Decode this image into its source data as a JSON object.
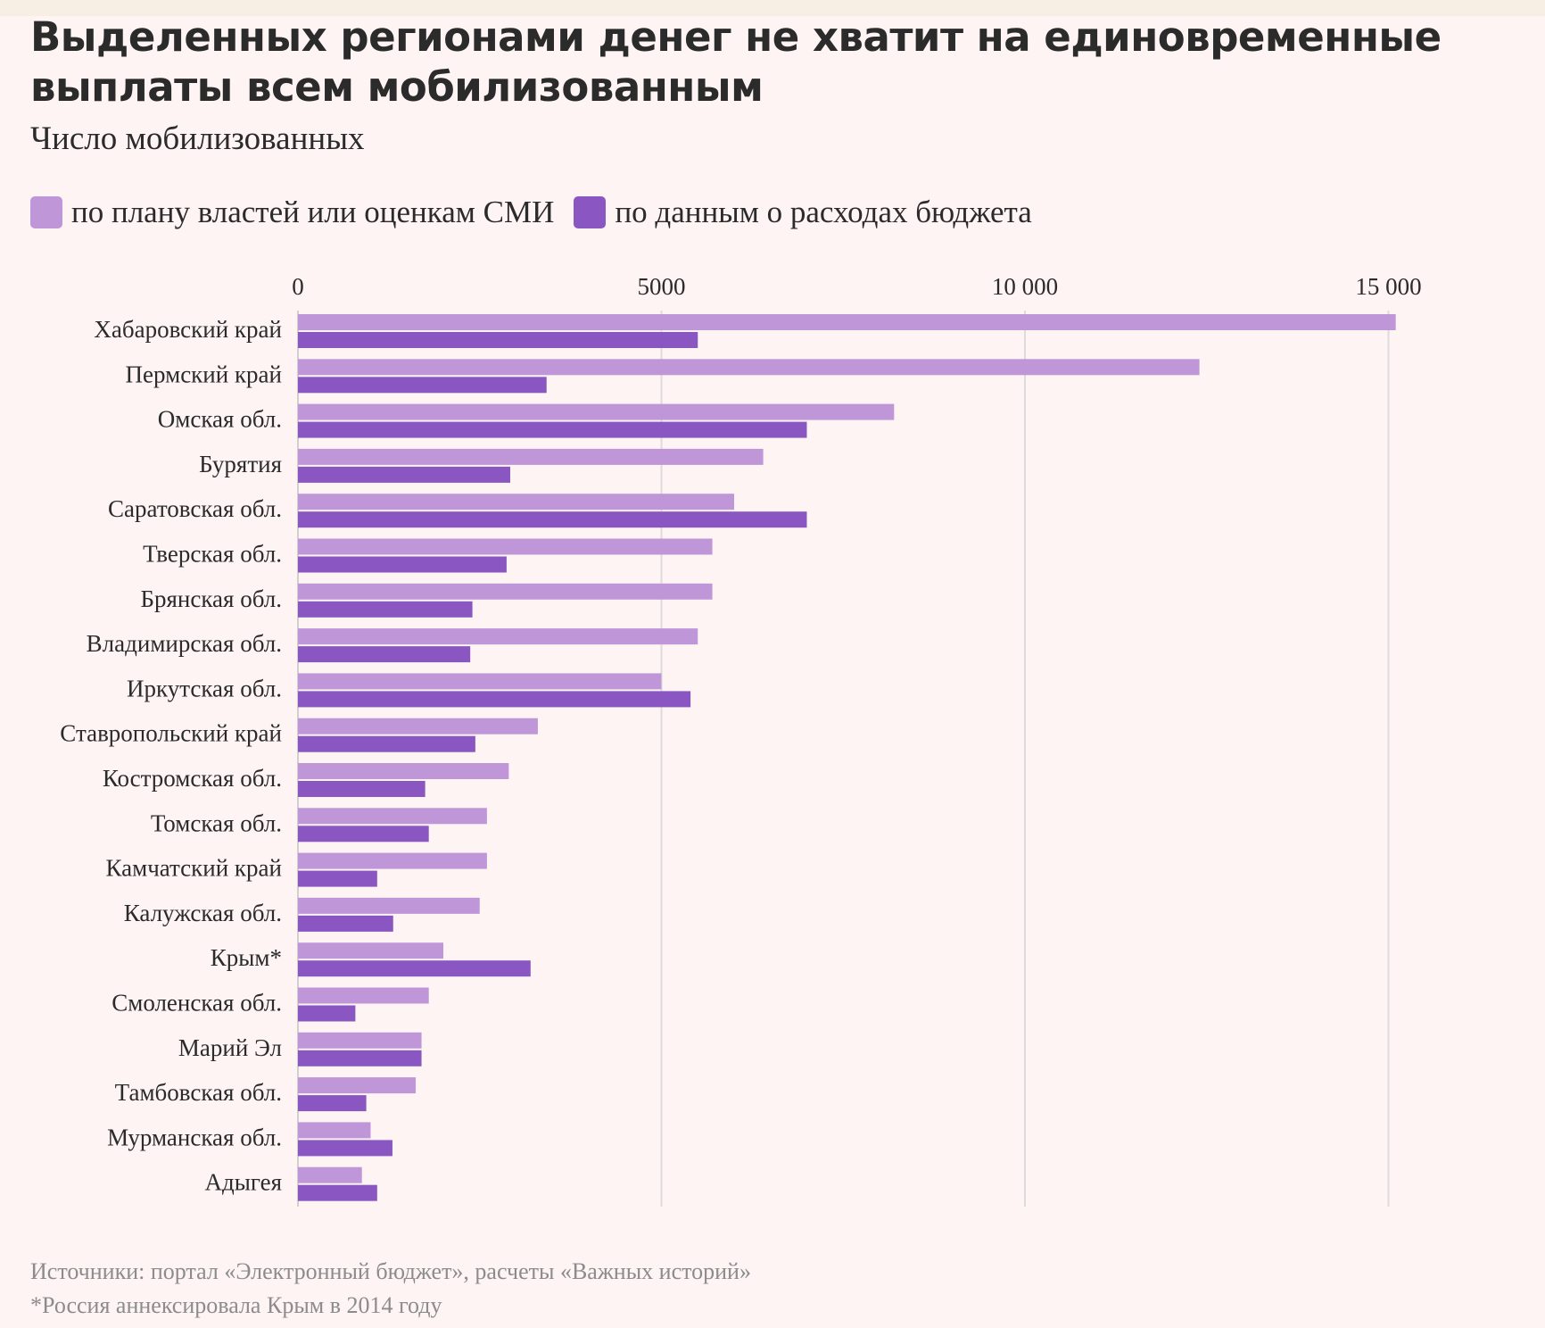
{
  "title": "Выделенных регионами денег не хватит на единовременные выплаты всем мобилизованным",
  "subtitle": "Число мобилизованных",
  "colors": {
    "plan": "#bf97d9",
    "budget": "#8a57c2",
    "grid": "#dcdcdc",
    "background": "#fdf4f3"
  },
  "chart_data": {
    "type": "bar",
    "orientation": "horizontal",
    "categories": [
      "Хабаровский край",
      "Пермский край",
      "Омская обл.",
      "Бурятия",
      "Саратовская обл.",
      "Тверская обл.",
      "Брянская обл.",
      "Владимирская обл.",
      "Иркутская обл.",
      "Ставропольский край",
      "Костромская обл.",
      "Томская обл.",
      "Камчатский край",
      "Калужская обл.",
      "Крым*",
      "Смоленская обл.",
      "Марий Эл",
      "Тамбовская обл.",
      "Мурманская обл.",
      "Адыгея"
    ],
    "series": [
      {
        "name": "по плану властей или оценкам СМИ",
        "values": [
          15100,
          12400,
          8200,
          6400,
          6000,
          5700,
          5700,
          5500,
          5000,
          3300,
          2900,
          2600,
          2600,
          2500,
          2000,
          1800,
          1700,
          1620,
          1000,
          880
        ]
      },
      {
        "name": "по данным о расходах бюджета",
        "values": [
          5500,
          3420,
          7000,
          2920,
          7000,
          2870,
          2400,
          2370,
          5400,
          2440,
          1750,
          1800,
          1090,
          1310,
          3200,
          790,
          1700,
          940,
          1300,
          1090
        ]
      }
    ],
    "xlim": [
      0,
      15700
    ],
    "xticks": [
      0,
      5000,
      10000,
      15000
    ],
    "xtick_labels": [
      "0",
      "5000",
      "10 000",
      "15 000"
    ],
    "xaxis_position": "top",
    "grid": true,
    "legend_position": "top-left"
  },
  "footnotes": {
    "sources": "Источники: портал «Электронный бюджет», расчеты «Важных историй»",
    "note": "*Россия аннексировала Крым в 2014 году"
  }
}
